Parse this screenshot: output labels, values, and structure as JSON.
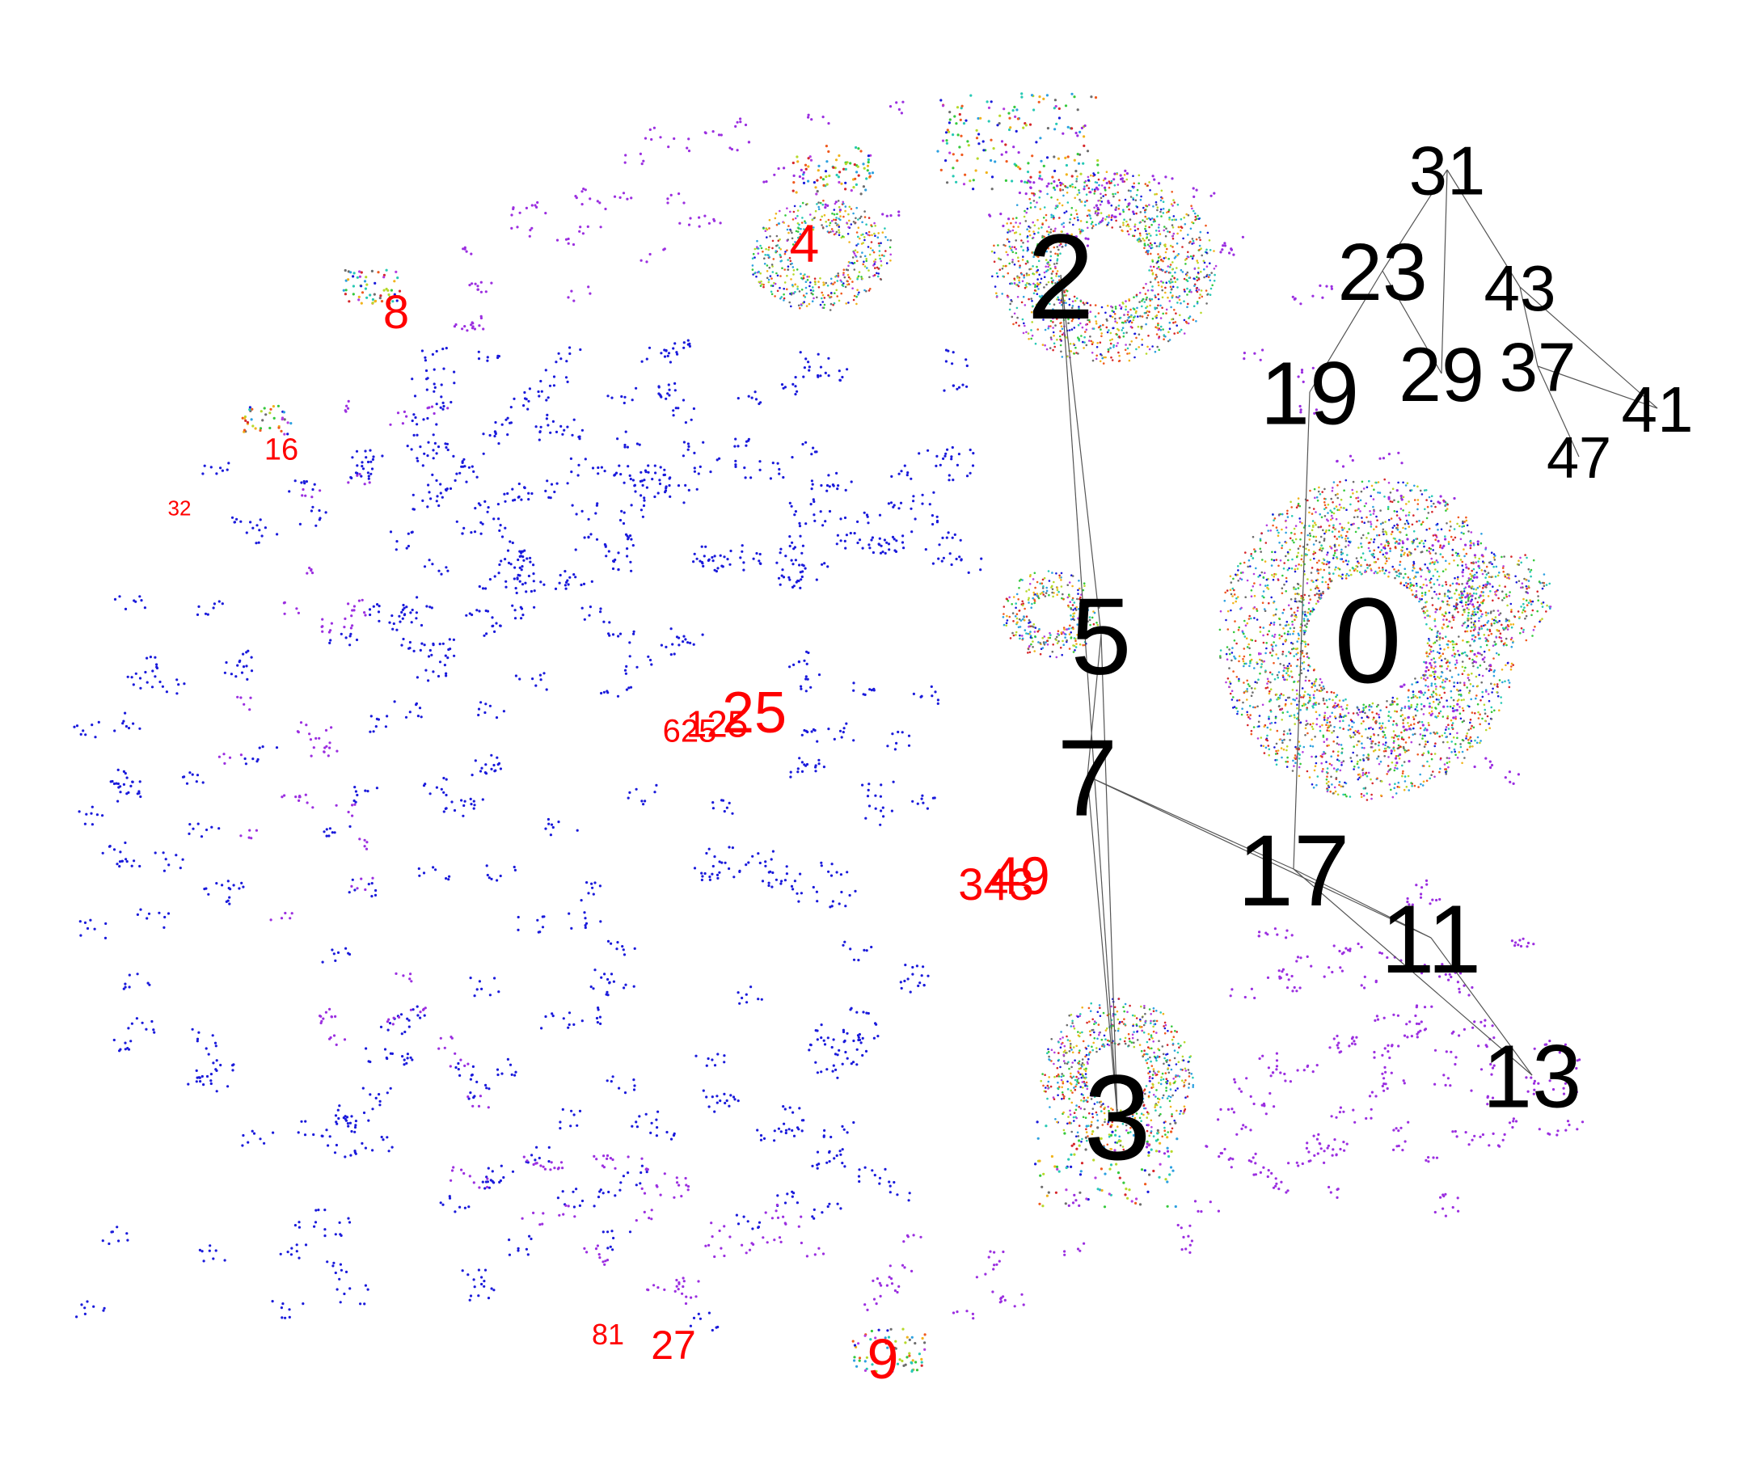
{
  "colors": {
    "black_label": "#000000",
    "red_label": "#ff0000",
    "edge": "#555555",
    "blue_points": "#1a1adb",
    "purple_points": "#9b2ee0",
    "palette": [
      "#1a1adb",
      "#2ca0e0",
      "#27c9b4",
      "#35c93c",
      "#b6d92a",
      "#f1b31b",
      "#f05a1e",
      "#d6272b",
      "#b43de0",
      "#6d6d6d"
    ]
  },
  "nodes": [
    {
      "id": "n0",
      "label": "0",
      "color": "black"
    },
    {
      "id": "n2",
      "label": "2",
      "color": "black"
    },
    {
      "id": "n3",
      "label": "3",
      "color": "black"
    },
    {
      "id": "n5",
      "label": "5",
      "color": "black"
    },
    {
      "id": "n7",
      "label": "7",
      "color": "black"
    },
    {
      "id": "n11",
      "label": "11",
      "color": "black"
    },
    {
      "id": "n13",
      "label": "13",
      "color": "black"
    },
    {
      "id": "n17",
      "label": "17",
      "color": "black"
    },
    {
      "id": "n19",
      "label": "19",
      "color": "black"
    },
    {
      "id": "n23",
      "label": "23",
      "color": "black"
    },
    {
      "id": "n29",
      "label": "29",
      "color": "black"
    },
    {
      "id": "n31",
      "label": "31",
      "color": "black"
    },
    {
      "id": "n37",
      "label": "37",
      "color": "black"
    },
    {
      "id": "n41",
      "label": "41",
      "color": "black"
    },
    {
      "id": "n43",
      "label": "43",
      "color": "black"
    },
    {
      "id": "n47",
      "label": "47",
      "color": "black"
    },
    {
      "id": "r4",
      "label": "4",
      "color": "red"
    },
    {
      "id": "r8",
      "label": "8",
      "color": "red"
    },
    {
      "id": "r16",
      "label": "16",
      "color": "red"
    },
    {
      "id": "r32",
      "label": "32",
      "color": "red"
    },
    {
      "id": "r25",
      "label": "25",
      "color": "red"
    },
    {
      "id": "r125",
      "label": "125",
      "color": "red"
    },
    {
      "id": "r625",
      "label": "625",
      "color": "red"
    },
    {
      "id": "r49",
      "label": "49",
      "color": "red"
    },
    {
      "id": "r343",
      "label": "343",
      "color": "red"
    },
    {
      "id": "r81",
      "label": "81",
      "color": "red"
    },
    {
      "id": "r27",
      "label": "27",
      "color": "red"
    },
    {
      "id": "r9",
      "label": "9",
      "color": "red"
    }
  ],
  "edges": [
    [
      "n2",
      "n5"
    ],
    [
      "n2",
      "n3"
    ],
    [
      "n5",
      "n7"
    ],
    [
      "n5",
      "n3"
    ],
    [
      "n7",
      "n3"
    ],
    [
      "n7",
      "n17"
    ],
    [
      "n7",
      "n11"
    ],
    [
      "n17",
      "n11"
    ],
    [
      "n17",
      "n13"
    ],
    [
      "n11",
      "n13"
    ],
    [
      "n17",
      "n19"
    ],
    [
      "n19",
      "n23"
    ],
    [
      "n23",
      "n29"
    ],
    [
      "n23",
      "n31"
    ],
    [
      "n31",
      "n29"
    ],
    [
      "n31",
      "n43"
    ],
    [
      "n43",
      "n37"
    ],
    [
      "n43",
      "n41"
    ],
    [
      "n37",
      "n41"
    ],
    [
      "n37",
      "n47"
    ]
  ]
}
